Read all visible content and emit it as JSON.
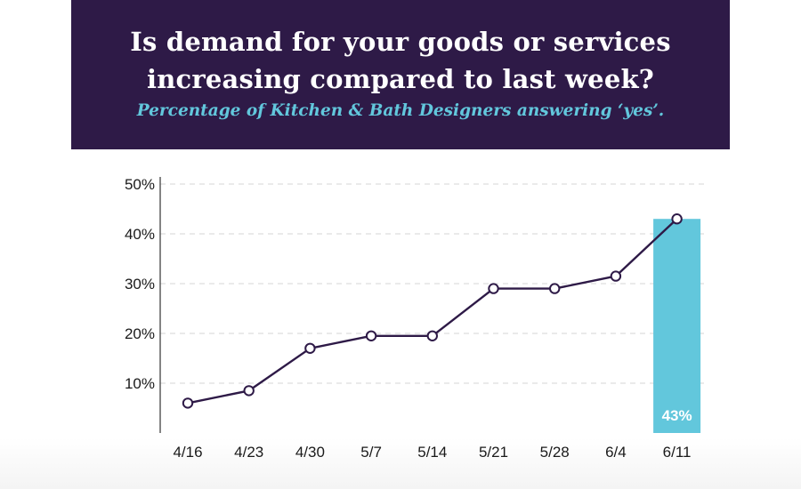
{
  "header": {
    "title_line1": "Is demand for your goods or services",
    "title_line2": "increasing compared to last week?",
    "subtitle": "Percentage of Kitchen & Bath Designers answering ‘yes’."
  },
  "colors": {
    "header_bg": "#2e1a47",
    "subtitle": "#62c7dc",
    "line": "#2e1a47",
    "highlight_bar": "#62c7dc",
    "grid": "#d6d6d6"
  },
  "chart_data": {
    "type": "line",
    "categories": [
      "4/16",
      "4/23",
      "4/30",
      "5/7",
      "5/14",
      "5/21",
      "5/28",
      "6/4",
      "6/11"
    ],
    "series": [
      {
        "values": [
          6,
          8.5,
          17,
          19.5,
          19.5,
          29,
          29,
          31.5,
          43
        ]
      }
    ],
    "highlight": {
      "category": "6/11",
      "value": 43,
      "label": "43%"
    },
    "ylim": [
      0,
      50
    ],
    "yticks": [
      10,
      20,
      30,
      40,
      50
    ],
    "ytick_labels": [
      "10%",
      "20%",
      "30%",
      "40%",
      "50%"
    ],
    "grid": true,
    "xlabel": "",
    "ylabel": ""
  }
}
